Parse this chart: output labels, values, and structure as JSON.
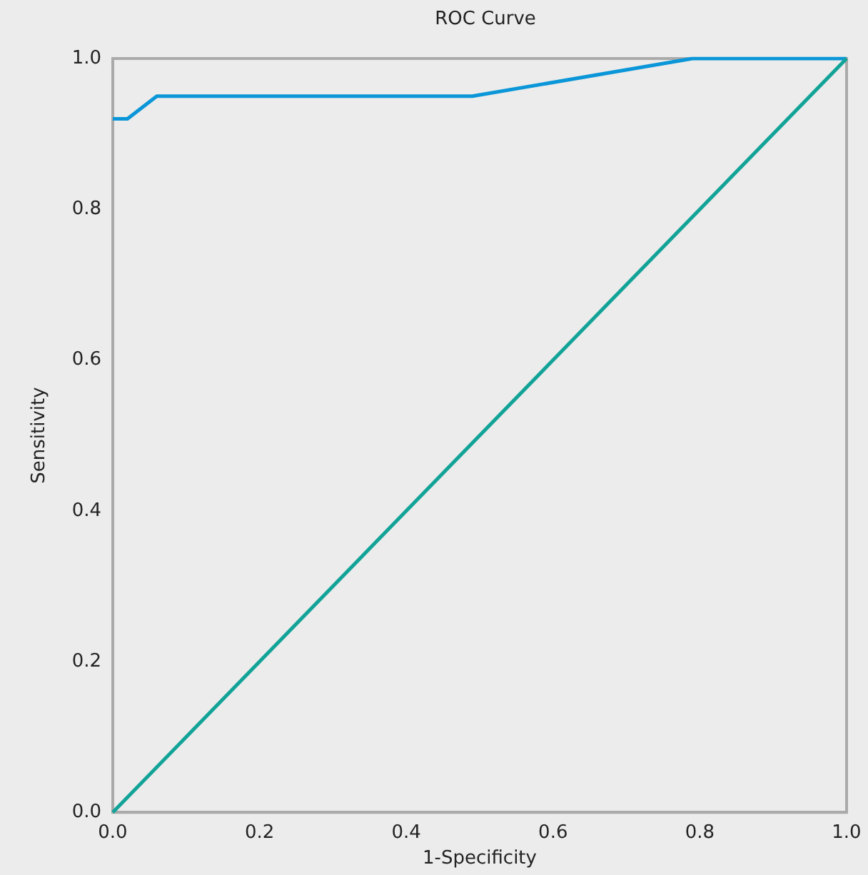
{
  "chart_data": {
    "type": "line",
    "title": "ROC Curve",
    "xlabel": "1-Specificity",
    "ylabel": "Sensitivity",
    "series": [
      {
        "color": "#0a96d8",
        "x": [
          0,
          0.02,
          0.06,
          0.49,
          0.79,
          1
        ],
        "values": [
          0.92,
          0.92,
          0.95,
          0.95,
          1,
          1
        ]
      },
      {
        "color": "#12a398",
        "x": [
          0,
          1
        ],
        "values": [
          0,
          1
        ]
      }
    ],
    "xlim": [
      0,
      1
    ],
    "ylim": [
      0,
      1
    ],
    "xticks": [
      {
        "value": 0,
        "label": "0.0"
      },
      0.2,
      0.4,
      0.6,
      0.8,
      {
        "value": 1,
        "label": "1.0"
      }
    ],
    "yticks": [
      {
        "value": 0,
        "label": "0.0"
      },
      0.2,
      0.4,
      0.6,
      0.8,
      {
        "value": 1,
        "label": "1.0"
      }
    ],
    "grid": false,
    "marker": "none",
    "line_style": "solid"
  }
}
